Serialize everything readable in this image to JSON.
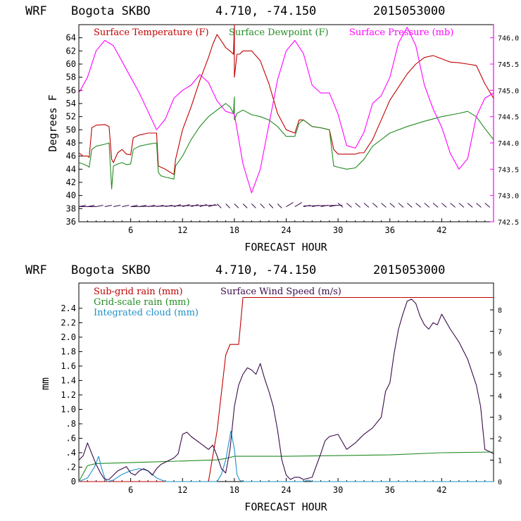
{
  "chart_data": [
    {
      "type": "line",
      "header": {
        "model": "WRF",
        "station": "Bogota SKBO",
        "coords": "4.710, -74.150",
        "run": "2015053000"
      },
      "xlabel": "FORECAST HOUR",
      "ylabel": "Degrees F",
      "xlim": [
        0,
        48
      ],
      "ylim": [
        36,
        66
      ],
      "x_ticks": [
        6,
        12,
        18,
        24,
        30,
        36,
        42
      ],
      "y_ticks": [
        36,
        38,
        40,
        42,
        44,
        46,
        48,
        50,
        52,
        54,
        56,
        58,
        60,
        62,
        64
      ],
      "y2lim": [
        742.5,
        746.25
      ],
      "y2_ticks": [
        "742.5",
        "743.0",
        "743.5",
        "744.0",
        "744.5",
        "745.0",
        "745.5",
        "746.0"
      ],
      "legend": [
        {
          "label": "Surface Temperature (F)",
          "color": "#c00000"
        },
        {
          "label": "Surface Dewpoint (F)",
          "color": "#228b22"
        },
        {
          "label": "Surface Pressure (mb)",
          "color": "#ff00ff"
        }
      ],
      "series": [
        {
          "name": "Surface Temperature (F)",
          "axis": "left",
          "color": "#c00000",
          "x": [
            0,
            0.5,
            1,
            1.2,
            1.5,
            2,
            3,
            3.5,
            3.8,
            4,
            4.5,
            5,
            5.5,
            6,
            6.3,
            7,
            8,
            9,
            9.2,
            9.5,
            10,
            10.5,
            11,
            11.2,
            11.5,
            12,
            13,
            14,
            15,
            15.5,
            16,
            16.5,
            17,
            17.5,
            17.9,
            18,
            18,
            18.3,
            18.6,
            19,
            19.5,
            20,
            21,
            22,
            23,
            24,
            25,
            25.5,
            26,
            27,
            28,
            29,
            29.5,
            30,
            31,
            32,
            32.5,
            33,
            34,
            35,
            36,
            37,
            38,
            39,
            40,
            41,
            42,
            43,
            44,
            45,
            46,
            47,
            48
          ],
          "y": [
            46.5,
            46,
            46,
            45.8,
            50.3,
            50.7,
            50.8,
            50.5,
            45.5,
            45,
            46.5,
            47,
            46.3,
            46.2,
            48.8,
            49.2,
            49.5,
            49.5,
            44.5,
            44.3,
            44,
            43.6,
            43.2,
            45.5,
            47.2,
            50,
            53.5,
            57.5,
            61,
            63,
            64.5,
            63.5,
            62.5,
            62,
            61.5,
            66,
            58,
            61.5,
            61.5,
            62,
            62,
            62,
            60.5,
            57,
            52.5,
            50,
            49.5,
            51.5,
            51.5,
            50.5,
            50.3,
            50,
            47,
            46.3,
            46.3,
            46.3,
            46.5,
            46.5,
            48.5,
            51.5,
            54.5,
            56.5,
            58.5,
            60,
            61,
            61.3,
            60.8,
            60.3,
            60.2,
            60,
            59.8,
            57,
            54.8
          ]
        },
        {
          "name": "Surface Dewpoint (F)",
          "axis": "left",
          "color": "#228b22",
          "x": [
            0,
            0.5,
            1,
            1.2,
            1.5,
            2,
            3,
            3.5,
            3.8,
            4,
            4.5,
            5,
            5.5,
            6,
            6.3,
            7,
            8,
            9,
            9.2,
            9.5,
            10,
            11,
            11.2,
            12,
            13,
            14,
            15,
            16,
            17,
            17.5,
            17.9,
            18,
            18,
            18.3,
            19,
            20,
            21,
            22,
            23,
            24,
            25,
            25.5,
            26,
            27,
            28,
            29,
            29.5,
            30,
            31,
            32,
            33,
            34,
            35,
            36,
            38,
            40,
            42,
            44,
            45,
            46,
            47,
            48
          ],
          "y": [
            45,
            44.8,
            44.5,
            44.3,
            47,
            47.5,
            47.8,
            48,
            41,
            44.5,
            44.8,
            45,
            44.7,
            44.8,
            47,
            47.5,
            47.8,
            48,
            43.5,
            43,
            42.8,
            42.5,
            44.5,
            46,
            48.5,
            50.5,
            52,
            53,
            54,
            53.5,
            52.5,
            55,
            51.5,
            52.5,
            53,
            52.3,
            52,
            51.5,
            50.5,
            49,
            49,
            51,
            51.5,
            50.5,
            50.3,
            50,
            44.5,
            44.3,
            44,
            44.2,
            45.5,
            47.5,
            48.5,
            49.5,
            50.5,
            51.3,
            52,
            52.5,
            52.8,
            52,
            50.2,
            48.5
          ]
        },
        {
          "name": "Surface Pressure (mb)",
          "axis": "right",
          "color": "#ff00ff",
          "x": [
            0,
            1,
            2,
            3,
            4,
            5,
            6,
            7,
            8,
            9,
            10,
            11,
            12,
            13,
            14,
            15,
            16,
            17,
            18,
            19,
            20,
            21,
            22,
            23,
            24,
            25,
            26,
            27,
            28,
            29,
            30,
            31,
            32,
            33,
            34,
            35,
            36,
            37,
            38,
            39,
            40,
            41,
            42,
            43,
            44,
            45,
            46,
            47,
            48
          ],
          "y": [
            744.95,
            745.25,
            745.75,
            745.95,
            745.85,
            745.55,
            745.25,
            744.95,
            744.6,
            744.25,
            744.45,
            744.85,
            745.0,
            745.1,
            745.3,
            745.15,
            744.8,
            744.6,
            744.55,
            743.6,
            743.05,
            743.5,
            744.35,
            745.2,
            745.75,
            745.95,
            745.7,
            745.1,
            744.95,
            744.95,
            744.55,
            743.95,
            743.9,
            744.2,
            744.75,
            744.9,
            745.25,
            745.9,
            746.2,
            745.85,
            745.1,
            744.65,
            744.3,
            743.8,
            743.5,
            743.7,
            744.5,
            744.85,
            744.95
          ]
        }
      ],
      "annotation": "wind barbs along bottom of panel (speed/direction by hour)"
    },
    {
      "type": "line",
      "header": {
        "model": "WRF",
        "station": "Bogota SKBO",
        "coords": "4.710, -74.150",
        "run": "2015053000"
      },
      "xlabel": "FORECAST HOUR",
      "ylabel": "mm",
      "xlim": [
        0,
        48
      ],
      "ylim": [
        0,
        2.75
      ],
      "x_ticks": [
        6,
        12,
        18,
        24,
        30,
        36,
        42
      ],
      "y_ticks": [
        0,
        0.2,
        0.4,
        0.6,
        0.8,
        1.0,
        1.2,
        1.4,
        1.6,
        1.8,
        2.0,
        2.2,
        2.4
      ],
      "y_tick_labels": [
        "0",
        ".2",
        ".4",
        ".6",
        ".8",
        "1.0",
        "1.2",
        "1.4",
        "1.6",
        "1.8",
        "2.0",
        "2.2",
        "2.4"
      ],
      "y2lim": [
        0,
        9.25
      ],
      "y2_ticks": [
        "0",
        "1",
        "2",
        "3",
        "4",
        "5",
        "6",
        "7",
        "8"
      ],
      "legend": [
        {
          "label": "Sub-grid rain (mm)",
          "color": "#c00000"
        },
        {
          "label": "Surface Wind Speed (m/s)",
          "color": "#3a0a4a"
        },
        {
          "label": "Grid-scale rain (mm)",
          "color": "#228b22"
        },
        {
          "label": "Integrated cloud (mm)",
          "color": "#1e90c8"
        }
      ],
      "series": [
        {
          "name": "Sub-grid rain (mm)",
          "axis": "left",
          "color": "#c00000",
          "x": [
            0,
            15,
            16,
            17,
            17.5,
            18.5,
            19,
            48
          ],
          "y": [
            0,
            0,
            0.7,
            1.75,
            1.9,
            1.9,
            2.55,
            2.55
          ]
        },
        {
          "name": "Grid-scale rain (mm)",
          "axis": "left",
          "color": "#228b22",
          "x": [
            0,
            1,
            2,
            8,
            16,
            17,
            18,
            19,
            24,
            36,
            42,
            48
          ],
          "y": [
            0,
            0.22,
            0.25,
            0.27,
            0.3,
            0.32,
            0.35,
            0.35,
            0.35,
            0.37,
            0.4,
            0.41
          ]
        },
        {
          "name": "Integrated cloud (mm)",
          "axis": "left",
          "color": "#1e90c8",
          "x": [
            0,
            1,
            1.8,
            2.3,
            2.6,
            3,
            3.3,
            4,
            5,
            6,
            7,
            8,
            9,
            10,
            16,
            16.5,
            17,
            17.3,
            17.6,
            18,
            18.3,
            18.6,
            19,
            26,
            26.5,
            27,
            48
          ],
          "y": [
            0,
            0.05,
            0.2,
            0.35,
            0.2,
            0.05,
            0,
            0.02,
            0.1,
            0.15,
            0.18,
            0.15,
            0.05,
            0,
            0,
            0.1,
            0.3,
            0.5,
            0.7,
            0.45,
            0.1,
            0.02,
            0,
            0,
            0.02,
            0,
            0
          ]
        },
        {
          "name": "Surface Wind Speed (m/s)",
          "axis": "right",
          "color": "#3a0a4a",
          "x": [
            0,
            0.5,
            1,
            1.5,
            2,
            2.5,
            3,
            3.5,
            4,
            4.5,
            5,
            5.5,
            6,
            6.5,
            7,
            7.5,
            8,
            8.5,
            9,
            9.5,
            10,
            10.5,
            11,
            11.5,
            12,
            12.5,
            13,
            14,
            15,
            15.5,
            16,
            16.5,
            17,
            17.5,
            18,
            18.5,
            19,
            19.5,
            20,
            20.5,
            21,
            21.5,
            22,
            22.5,
            23,
            23.5,
            24,
            24.5,
            25,
            25.5,
            26,
            27,
            28,
            28.5,
            29,
            30,
            31,
            32,
            33,
            34,
            35,
            35.5,
            36,
            36.5,
            37,
            37.5,
            38,
            38.5,
            39,
            39.5,
            40,
            40.5,
            41,
            41.5,
            42,
            43,
            44,
            45,
            46,
            46.5,
            47,
            48
          ],
          "y": [
            1.0,
            1.2,
            1.8,
            1.3,
            0.8,
            0.4,
            0.1,
            0.1,
            0.3,
            0.5,
            0.6,
            0.7,
            0.4,
            0.3,
            0.5,
            0.6,
            0.5,
            0.3,
            0.6,
            0.8,
            0.9,
            1.0,
            1.1,
            1.3,
            2.2,
            2.3,
            2.1,
            1.8,
            1.5,
            1.7,
            1.2,
            0.6,
            0.4,
            1.5,
            3.5,
            4.5,
            5.0,
            5.3,
            5.2,
            5.0,
            5.5,
            4.8,
            4.2,
            3.5,
            2.4,
            1.0,
            0.3,
            0.1,
            0.2,
            0.2,
            0.1,
            0.2,
            1.3,
            1.9,
            2.1,
            2.2,
            1.5,
            1.8,
            2.2,
            2.5,
            3.0,
            4.2,
            4.6,
            6.0,
            7.1,
            7.8,
            8.4,
            8.5,
            8.3,
            7.7,
            7.3,
            7.1,
            7.4,
            7.3,
            7.8,
            7.1,
            6.5,
            5.7,
            4.5,
            3.5,
            1.5,
            1.3
          ]
        }
      ]
    }
  ]
}
